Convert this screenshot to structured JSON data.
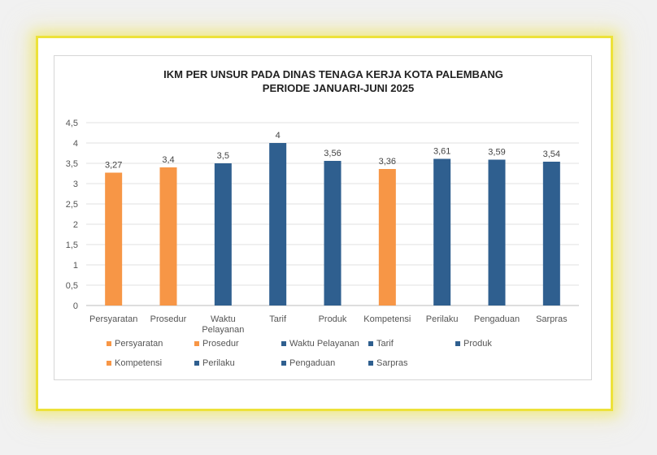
{
  "chart_data": {
    "type": "bar",
    "title": "IKM PER UNSUR PADA DINAS TENAGA KERJA KOTA PALEMBANG",
    "subtitle": "PERIODE JANUARI-JUNI 2025",
    "categories": [
      "Persyaratan",
      "Prosedur",
      "Waktu Pelayanan",
      "Tarif",
      "Produk",
      "Kompetensi",
      "Perilaku",
      "Pengaduan",
      "Sarpras"
    ],
    "values": [
      3.27,
      3.4,
      3.5,
      4,
      3.56,
      3.36,
      3.61,
      3.59,
      3.54
    ],
    "value_labels": [
      "3,27",
      "3,4",
      "3,5",
      "4",
      "3,56",
      "3,36",
      "3,61",
      "3,59",
      "3,54"
    ],
    "colors": [
      "#f79646",
      "#f79646",
      "#2f5f8f",
      "#2f5f8f",
      "#2f5f8f",
      "#f79646",
      "#2f5f8f",
      "#2f5f8f",
      "#2f5f8f"
    ],
    "ylim": [
      0,
      4.5
    ],
    "y_ticks": [
      0,
      0.5,
      1,
      1.5,
      2,
      2.5,
      3,
      3.5,
      4,
      4.5
    ],
    "y_tick_labels": [
      "0",
      "0,5",
      "1",
      "1,5",
      "2",
      "2,5",
      "3",
      "3,5",
      "4",
      "4,5"
    ],
    "grid": true,
    "legend_position": "bottom",
    "legend": [
      {
        "label": "Persyaratan",
        "color": "#f79646"
      },
      {
        "label": "Prosedur",
        "color": "#f79646"
      },
      {
        "label": "Waktu Pelayanan",
        "color": "#2f5f8f"
      },
      {
        "label": "Tarif",
        "color": "#2f5f8f"
      },
      {
        "label": "Produk",
        "color": "#2f5f8f"
      },
      {
        "label": "Kompetensi",
        "color": "#f79646"
      },
      {
        "label": "Perilaku",
        "color": "#2f5f8f"
      },
      {
        "label": "Pengaduan",
        "color": "#2f5f8f"
      },
      {
        "label": "Sarpras",
        "color": "#2f5f8f"
      }
    ]
  }
}
